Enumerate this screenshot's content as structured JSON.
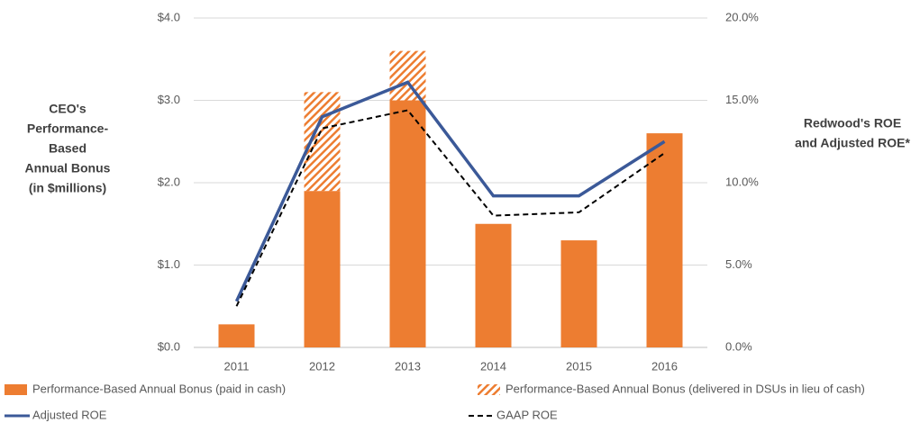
{
  "chart_data": {
    "type": "bar",
    "y_label": [
      "CEO's",
      "Performance-",
      "Based",
      "Annual Bonus",
      "(in $millions)"
    ],
    "y2_label": [
      "Redwood's ROE",
      "and Adjusted ROE*"
    ],
    "categories": [
      "2011",
      "2012",
      "2013",
      "2014",
      "2015",
      "2016"
    ],
    "series": [
      {
        "name": "Performance-Based Annual Bonus (paid in cash)",
        "color": "#ed7d31",
        "values": [
          0.28,
          1.9,
          3.0,
          1.5,
          1.3,
          2.6
        ]
      },
      {
        "name": "Performance-Based Annual Bonus (delivered in DSUs in lieu of cash)",
        "color": "#ed7d31",
        "pattern": "hatch",
        "values": [
          0,
          1.2,
          0.6,
          0,
          0,
          0
        ]
      },
      {
        "name": "Adjusted ROE",
        "type": "line",
        "axis": "y2",
        "color": "#3b5998",
        "values": [
          2.8,
          14.0,
          16.1,
          9.2,
          9.2,
          12.5
        ]
      },
      {
        "name": "GAAP ROE",
        "type": "line",
        "axis": "y2",
        "color": "#000000",
        "dash": true,
        "values": [
          2.5,
          13.3,
          14.4,
          8.0,
          8.2,
          11.8
        ]
      }
    ],
    "ylim": [
      0,
      4
    ],
    "yticks": [
      {
        "value": 0,
        "label": "$0.0"
      },
      {
        "value": 1,
        "label": "$1.0"
      },
      {
        "value": 2,
        "label": "$2.0"
      },
      {
        "value": 3,
        "label": "$3.0"
      },
      {
        "value": 4,
        "label": "$4.0"
      }
    ],
    "y2lim": [
      0,
      20
    ],
    "y2ticks": [
      {
        "value": 0,
        "label": "0.0%"
      },
      {
        "value": 5,
        "label": "5.0%"
      },
      {
        "value": 10,
        "label": "10.0%"
      },
      {
        "value": 15,
        "label": "15.0%"
      },
      {
        "value": 20,
        "label": "20.0%"
      }
    ],
    "grid": true,
    "legend": "bottom"
  }
}
